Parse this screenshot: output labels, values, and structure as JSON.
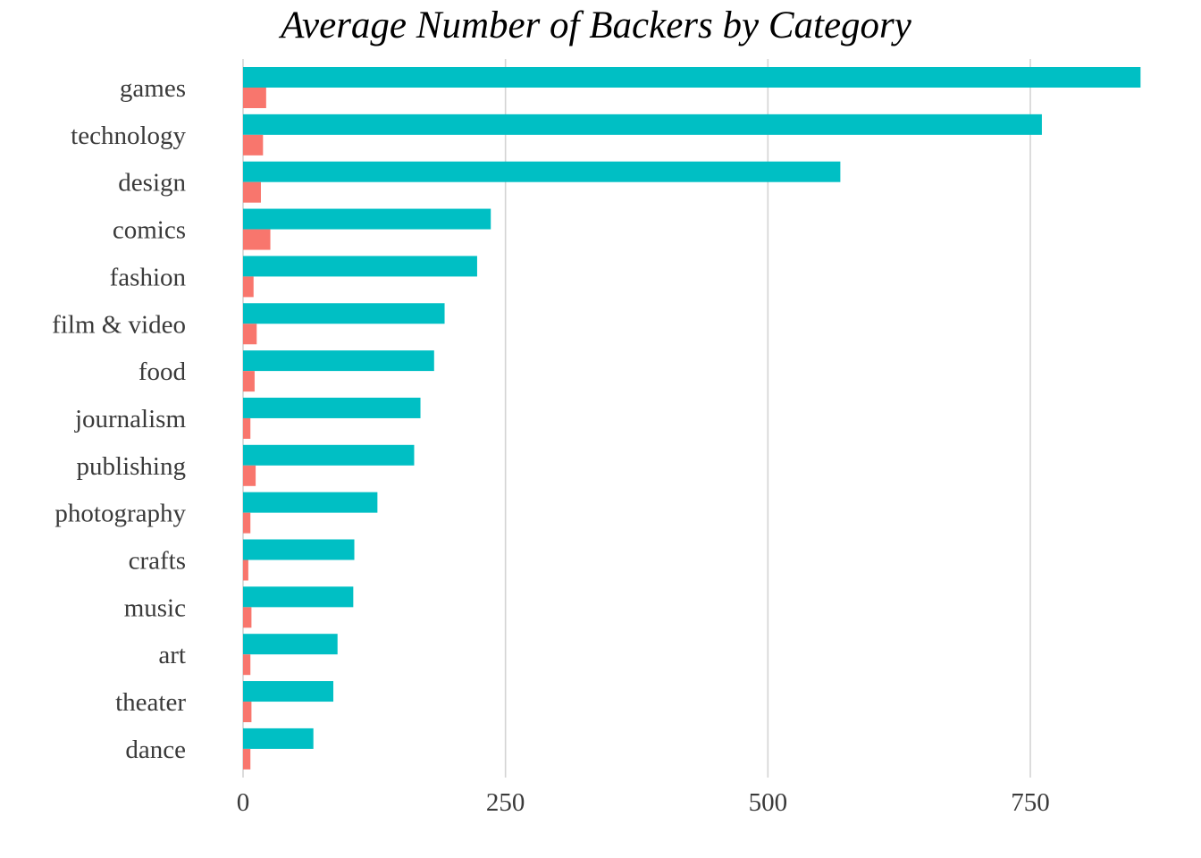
{
  "chart_data": {
    "type": "bar",
    "orientation": "horizontal",
    "title": "Average Number of Backers by Category",
    "xlabel": "",
    "ylabel": "",
    "categories": [
      "games",
      "technology",
      "design",
      "comics",
      "fashion",
      "film & video",
      "food",
      "journalism",
      "publishing",
      "photography",
      "crafts",
      "music",
      "art",
      "theater",
      "dance"
    ],
    "series": [
      {
        "color": "#00bfc4",
        "values": [
          855,
          761,
          569,
          236,
          223,
          192,
          182,
          169,
          163,
          128,
          106,
          105,
          90,
          86,
          67
        ]
      },
      {
        "color": "#f8766d",
        "values": [
          22,
          19,
          17,
          26,
          10,
          13,
          11,
          7,
          12,
          7,
          5,
          8,
          7,
          8,
          7
        ]
      }
    ],
    "xlim": [
      0,
      855
    ],
    "xticks": [
      0,
      250,
      500,
      750
    ],
    "xtick_labels": [
      "0",
      "250",
      "500",
      "750"
    ],
    "grid": "vertical-major",
    "legend": "none"
  }
}
